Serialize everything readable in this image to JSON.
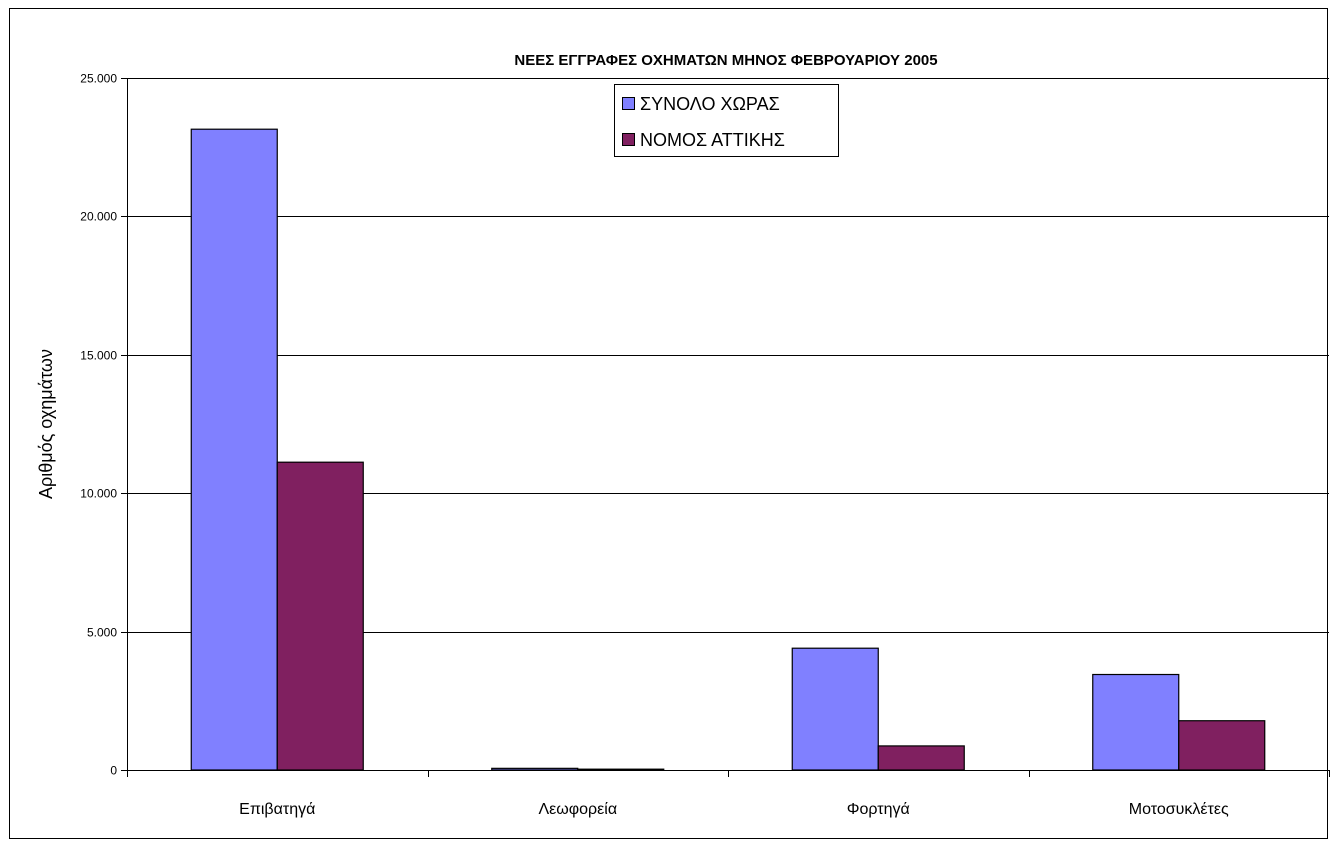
{
  "chart_data": {
    "type": "bar",
    "title": "ΝΕΕΣ ΕΓΓΡΑΦΕΣ ΟΧΗΜΑΤΩΝ ΜΗΝΟΣ ΦΕΒΡΟΥΑΡΙΟΥ 2005",
    "xlabel": "",
    "ylabel": "Αριθμός οχημάτων",
    "categories": [
      "Επιβατηγά",
      "Λεωφορεία",
      "Φορτηγά",
      "Μοτοσυκλέτες"
    ],
    "series": [
      {
        "name": "ΣΥΝΟΛΟ ΧΩΡΑΣ",
        "values": [
          23150,
          60,
          4400,
          3450
        ],
        "color": "#8080FF"
      },
      {
        "name": "ΝΟΜΟΣ ΑΤΤΙΚΗΣ",
        "values": [
          11120,
          30,
          870,
          1780
        ],
        "color": "#802060"
      }
    ],
    "ylim": [
      0,
      25000
    ],
    "yticks": [
      0,
      5000,
      10000,
      15000,
      20000,
      25000
    ],
    "ytick_labels": [
      "0",
      "5.000",
      "10.000",
      "15.000",
      "20.000",
      "25.000"
    ],
    "grid": true,
    "legend_position": "top-center"
  }
}
